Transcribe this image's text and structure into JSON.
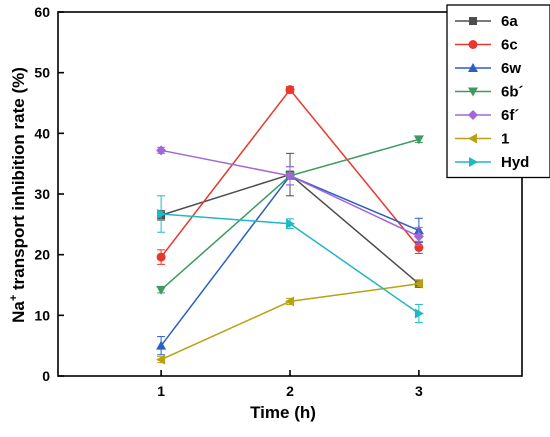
{
  "chart_data": {
    "type": "line",
    "xlabel": "Time (h)",
    "ylabel_prefix": "Na",
    "ylabel_sup": "+",
    "ylabel_rest": " transport inhibition rate (%)",
    "x": [
      1,
      2,
      3
    ],
    "x_ticks": [
      1,
      2,
      3
    ],
    "y_ticks": [
      0,
      10,
      20,
      30,
      40,
      50,
      60
    ],
    "xlim": [
      0.2,
      3.8
    ],
    "ylim": [
      0,
      60
    ],
    "grid": false,
    "legend_position": "top-right",
    "series": [
      {
        "name": "6a",
        "color": "#4d4d4d",
        "marker": "square",
        "values": [
          26.5,
          33.2,
          15.2
        ],
        "errors": [
          0.8,
          3.5,
          0.6
        ]
      },
      {
        "name": "6c",
        "color": "#e8372c",
        "marker": "circle",
        "values": [
          19.6,
          47.2,
          21.2
        ],
        "errors": [
          1.2,
          0.5,
          1.0
        ]
      },
      {
        "name": "6w",
        "color": "#2a5fc4",
        "marker": "triangle-up",
        "values": [
          5.0,
          33.0,
          24.0
        ],
        "errors": [
          1.5,
          1.5,
          2.0
        ]
      },
      {
        "name": "6b´",
        "color": "#3d9a61",
        "marker": "triangle-down",
        "values": [
          14.2,
          33.0,
          39.0
        ],
        "errors": [
          0.5,
          0.5,
          0.5
        ]
      },
      {
        "name": "6f´",
        "color": "#a366d9",
        "marker": "diamond",
        "values": [
          37.2,
          33.0,
          23.0
        ],
        "errors": [
          0.5,
          1.5,
          1.5
        ]
      },
      {
        "name": "1",
        "color": "#b8a212",
        "marker": "triangle-left",
        "values": [
          2.7,
          12.3,
          15.2
        ],
        "errors": [
          0.5,
          0.5,
          0.5
        ]
      },
      {
        "name": "Hyd",
        "color": "#1fb8c4",
        "marker": "triangle-right",
        "values": [
          26.7,
          25.1,
          10.3
        ],
        "errors": [
          3.0,
          0.8,
          1.5
        ]
      }
    ]
  }
}
